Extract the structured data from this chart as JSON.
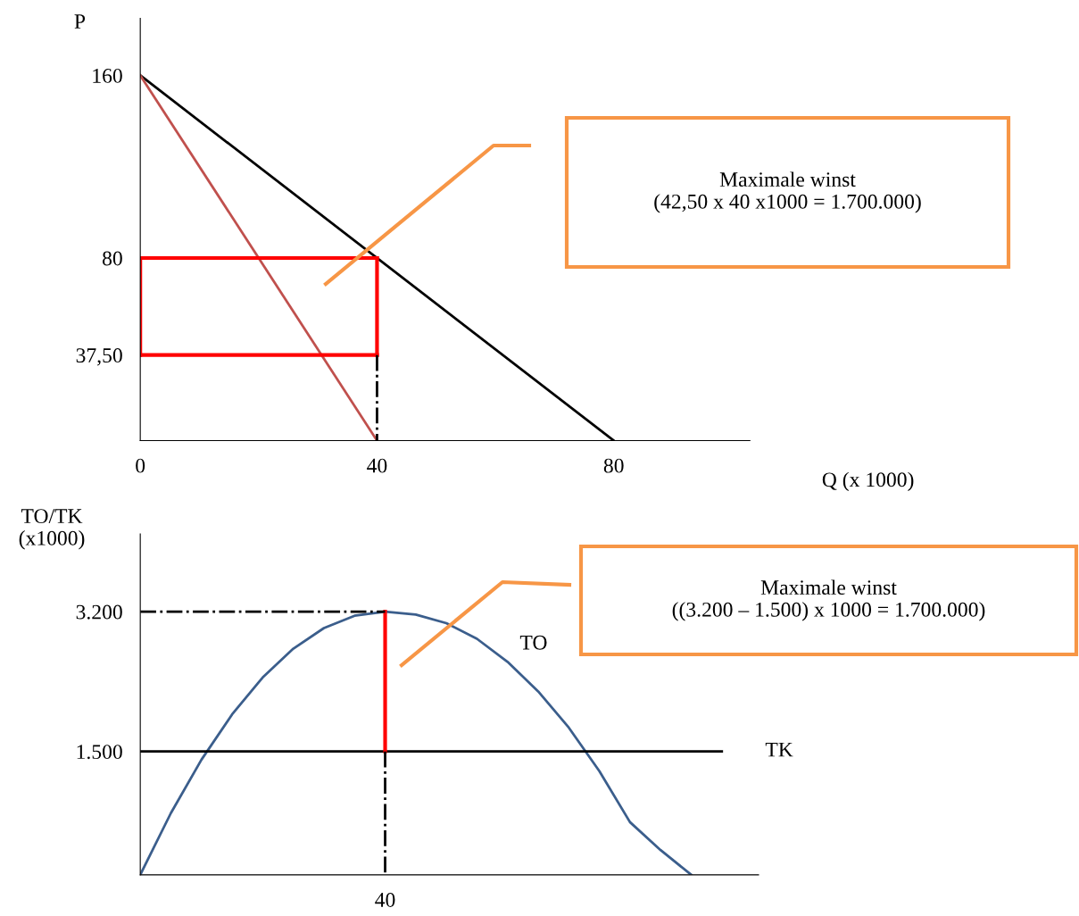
{
  "chart_data": [
    {
      "type": "line",
      "ylabel": "P",
      "xlabel": "Q (x 1000)",
      "xlim": [
        0,
        103
      ],
      "ylim": [
        0,
        185
      ],
      "xticks": [
        0,
        40,
        80
      ],
      "yticks": [
        {
          "value": 37.5,
          "label": "37,50"
        },
        80,
        160
      ],
      "grid": false,
      "legend": false,
      "marker": "none",
      "series": [
        {
          "color": "#000000",
          "x": [
            0,
            80
          ],
          "values": [
            160,
            0
          ]
        },
        {
          "color": "#c0504d",
          "x": [
            0,
            40
          ],
          "values": [
            160,
            0
          ]
        },
        {
          "color": "#ff0000",
          "x": [
            0,
            40
          ],
          "values": [
            80,
            80
          ]
        },
        {
          "color": "#ff0000",
          "x": [
            40,
            40
          ],
          "values": [
            80,
            37.5
          ]
        },
        {
          "color": "#ff0000",
          "x": [
            0,
            40
          ],
          "values": [
            37.5,
            37.5
          ]
        },
        {
          "color": "#ff0000",
          "x": [
            0,
            0
          ],
          "values": [
            37.5,
            80
          ]
        },
        {
          "color": "#000000",
          "x": [
            40,
            40
          ],
          "values": [
            37.5,
            0
          ],
          "line_style": "dashdot"
        }
      ],
      "annotations": [
        "Maximale winst\n(42,50 x 40 x1000 = 1.700.000)"
      ]
    },
    {
      "type": "line",
      "ylabel": "TO/TK\n(x1000)",
      "categories": [
        null,
        null,
        null,
        null,
        null,
        null,
        null,
        null,
        "40",
        null,
        null,
        null,
        null,
        null,
        null,
        null,
        null,
        null,
        null,
        null,
        null
      ],
      "ylim": [
        0,
        4144
      ],
      "yticks": [
        {
          "value": 1500,
          "label": "1.500"
        },
        {
          "value": 3200,
          "label": "3.200"
        }
      ],
      "grid": false,
      "legend": false,
      "marker": "none",
      "series": [
        {
          "name": "TO",
          "color": "#3b5e8c",
          "values": [
            0,
            750,
            1400,
            1950,
            2400,
            2750,
            3000,
            3150,
            3200,
            3165,
            3060,
            2870,
            2590,
            2230,
            1790,
            1260,
            640,
            300,
            0,
            null,
            null
          ]
        },
        {
          "name": "TK",
          "color": "#000000",
          "values": [
            1500,
            1500,
            1500,
            1500,
            1500,
            1500,
            1500,
            1500,
            1500,
            1500,
            1500,
            1500,
            1500,
            1500,
            1500,
            1500,
            1500,
            1500,
            1500,
            1500,
            null
          ]
        },
        {
          "color": "#ff0000",
          "x": [
            "40",
            "40"
          ],
          "values": [
            1500,
            3200
          ]
        },
        {
          "color": "#000000",
          "values": [
            3200,
            3200,
            3200,
            3200,
            3200,
            3200,
            3200,
            3200,
            3200,
            null,
            null,
            null,
            null,
            null,
            null,
            null,
            null,
            null,
            null,
            null,
            null
          ],
          "line_style": "dashdot"
        },
        {
          "color": "#000000",
          "x": [
            "40",
            "40"
          ],
          "values": [
            1500,
            0
          ],
          "line_style": "dashdot"
        }
      ],
      "annotations": [
        "Maximale winst\n((3.200 – 1.500) x 1000 = 1.700.000)"
      ]
    }
  ]
}
